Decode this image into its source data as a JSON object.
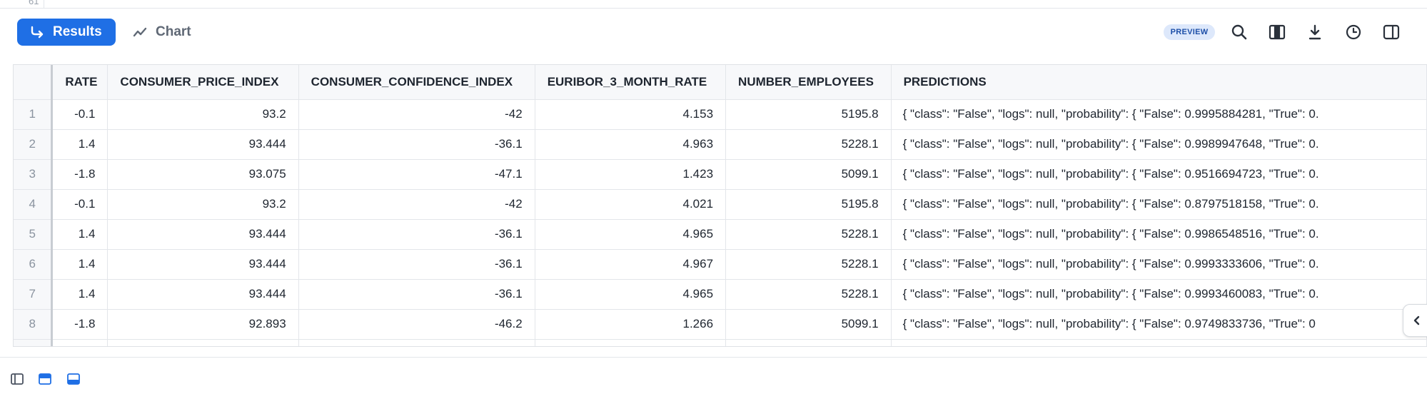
{
  "editor": {
    "line_number": "61"
  },
  "toolbar": {
    "results_label": "Results",
    "chart_label": "Chart",
    "preview_badge": "PREVIEW",
    "accent": "#1f6fe5",
    "icons": [
      "search-icon",
      "columns-icon",
      "download-icon",
      "history-icon",
      "panel-toggle-icon"
    ]
  },
  "table": {
    "columns": [
      "RATE",
      "CONSUMER_PRICE_INDEX",
      "CONSUMER_CONFIDENCE_INDEX",
      "EURIBOR_3_MONTH_RATE",
      "NUMBER_EMPLOYEES",
      "PREDICTIONS"
    ],
    "rows": [
      {
        "idx": "1",
        "rate": "-0.1",
        "cpi": "93.2",
        "cci": "-42",
        "euribor": "4.153",
        "employees": "5195.8",
        "pred": "{  \"class\": \"False\",  \"logs\": null,  \"probability\": {    \"False\": 0.9995884281,    \"True\": 0."
      },
      {
        "idx": "2",
        "rate": "1.4",
        "cpi": "93.444",
        "cci": "-36.1",
        "euribor": "4.963",
        "employees": "5228.1",
        "pred": "{  \"class\": \"False\",  \"logs\": null,  \"probability\": {    \"False\": 0.9989947648,    \"True\": 0."
      },
      {
        "idx": "3",
        "rate": "-1.8",
        "cpi": "93.075",
        "cci": "-47.1",
        "euribor": "1.423",
        "employees": "5099.1",
        "pred": "{  \"class\": \"False\",  \"logs\": null,  \"probability\": {    \"False\": 0.9516694723,    \"True\": 0."
      },
      {
        "idx": "4",
        "rate": "-0.1",
        "cpi": "93.2",
        "cci": "-42",
        "euribor": "4.021",
        "employees": "5195.8",
        "pred": "{  \"class\": \"False\",  \"logs\": null,  \"probability\": {    \"False\": 0.8797518158,    \"True\": 0."
      },
      {
        "idx": "5",
        "rate": "1.4",
        "cpi": "93.444",
        "cci": "-36.1",
        "euribor": "4.965",
        "employees": "5228.1",
        "pred": "{  \"class\": \"False\",  \"logs\": null,  \"probability\": {    \"False\": 0.9986548516,    \"True\": 0."
      },
      {
        "idx": "6",
        "rate": "1.4",
        "cpi": "93.444",
        "cci": "-36.1",
        "euribor": "4.967",
        "employees": "5228.1",
        "pred": "{  \"class\": \"False\",  \"logs\": null,  \"probability\": {    \"False\": 0.9993333606,    \"True\": 0."
      },
      {
        "idx": "7",
        "rate": "1.4",
        "cpi": "93.444",
        "cci": "-36.1",
        "euribor": "4.965",
        "employees": "5228.1",
        "pred": "{  \"class\": \"False\",  \"logs\": null,  \"probability\": {    \"False\": 0.9993460083,    \"True\": 0."
      },
      {
        "idx": "8",
        "rate": "-1.8",
        "cpi": "92.893",
        "cci": "-46.2",
        "euribor": "1.266",
        "employees": "5099.1",
        "pred": "{  \"class\": \"False\",  \"logs\": null,  \"probability\": {    \"False\": 0.9749833736,    \"True\": 0"
      }
    ]
  }
}
